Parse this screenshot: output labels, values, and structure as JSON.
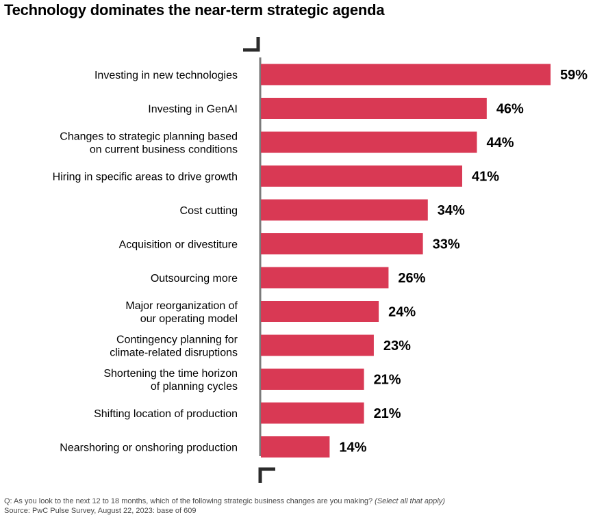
{
  "title": "Technology dominates the near-term strategic agenda",
  "chart_data": {
    "type": "bar",
    "orientation": "horizontal",
    "categories": [
      [
        "Investing in new technologies"
      ],
      [
        "Investing in GenAI"
      ],
      [
        "Changes to strategic planning based",
        "on current business conditions"
      ],
      [
        "Hiring in specific areas to drive growth"
      ],
      [
        "Cost cutting"
      ],
      [
        "Acquisition or divestiture"
      ],
      [
        "Outsourcing more"
      ],
      [
        "Major reorganization of",
        "our operating model"
      ],
      [
        "Contingency planning for",
        "climate-related disruptions"
      ],
      [
        "Shortening the time horizon",
        "of planning cycles"
      ],
      [
        "Shifting location of production"
      ],
      [
        "Nearshoring or onshoring production"
      ]
    ],
    "values": [
      59,
      46,
      44,
      41,
      34,
      33,
      26,
      24,
      23,
      21,
      21,
      14
    ],
    "value_labels": [
      "59%",
      "46%",
      "44%",
      "41%",
      "34%",
      "33%",
      "26%",
      "24%",
      "23%",
      "21%",
      "21%",
      "14%"
    ],
    "unit": "%",
    "bar_color": "#d93954",
    "axis_color": "#7a7a7a",
    "grid": false,
    "legend": "none"
  },
  "footnotes": {
    "question": "Q: As you look to the next 12 to 18 months, which of the following strategic business changes are you making?",
    "question_note": "(Select all that apply)",
    "source": "Source: PwC Pulse Survey, August 22, 2023: base of 609"
  }
}
